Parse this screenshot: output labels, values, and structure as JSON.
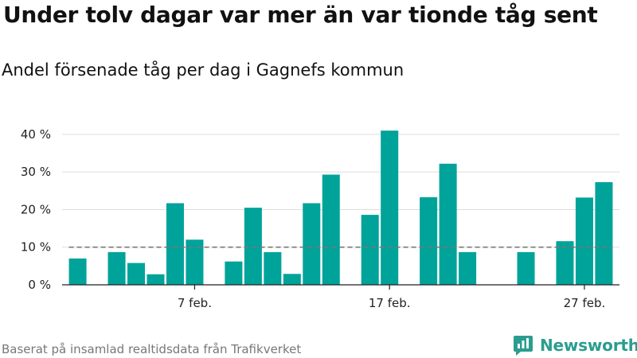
{
  "title": "Under tolv dagar var mer än var tionde tåg sent",
  "subtitle": "Andel försenade tåg per dag i Gagnefs kommun",
  "source": "Baserat på insamlad realtidsdata från Trafikverket",
  "brand": {
    "name": "Newsworthy",
    "icon": "newsworthy-logo-icon"
  },
  "colors": {
    "bar": "#00a39a",
    "grid": "#dddddd",
    "reference": "#777777",
    "axis": "#222222",
    "brand": "#2a9d8f"
  },
  "chart_data": {
    "type": "bar",
    "x": [
      "1 feb.",
      "2 feb.",
      "3 feb.",
      "4 feb.",
      "5 feb.",
      "6 feb.",
      "7 feb.",
      "8 feb.",
      "9 feb.",
      "10 feb.",
      "11 feb.",
      "12 feb.",
      "13 feb.",
      "14 feb.",
      "15 feb.",
      "16 feb.",
      "17 feb.",
      "18 feb.",
      "19 feb.",
      "20 feb.",
      "21 feb.",
      "22 feb.",
      "23 feb.",
      "24 feb.",
      "25 feb.",
      "26 feb.",
      "27 feb.",
      "28 feb."
    ],
    "values": [
      7,
      null,
      8.7,
      5.8,
      2.8,
      21.7,
      12.0,
      null,
      6.2,
      20.5,
      8.7,
      2.9,
      21.7,
      29.3,
      null,
      18.6,
      41.0,
      null,
      23.3,
      32.2,
      8.7,
      null,
      null,
      8.7,
      null,
      11.6,
      23.2,
      27.3
    ],
    "reference_line": 10,
    "x_ticks": [
      "7 feb.",
      "17 feb.",
      "27 feb."
    ],
    "y_ticks": [
      0,
      10,
      20,
      30,
      40
    ],
    "y_tick_labels": [
      "0 %",
      "10 %",
      "20 %",
      "30 %",
      "40 %"
    ],
    "ylim": [
      0,
      44
    ],
    "grid": true,
    "xlabel": "",
    "ylabel": ""
  }
}
